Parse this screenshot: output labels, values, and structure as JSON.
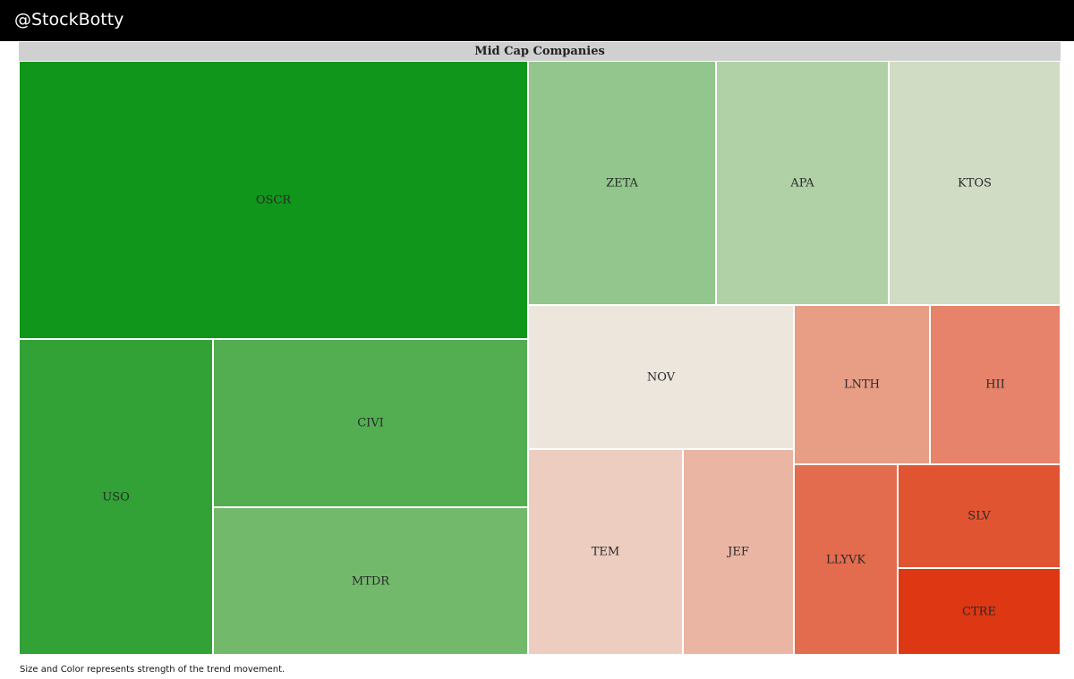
{
  "header": {
    "brand": "@StockBotty"
  },
  "footnote": "Size and Color represents strength of the trend movement.",
  "chart_data": {
    "type": "treemap",
    "title": "Mid Cap Companies",
    "items": [
      {
        "label": "OSCR",
        "color": "#10961a"
      },
      {
        "label": "ZETA",
        "color": "#92c68c"
      },
      {
        "label": "APA",
        "color": "#b0d1a6"
      },
      {
        "label": "KTOS",
        "color": "#d0dcc3"
      },
      {
        "label": "USO",
        "color": "#32a136"
      },
      {
        "label": "CIVI",
        "color": "#52ae51"
      },
      {
        "label": "MTDR",
        "color": "#73b96c"
      },
      {
        "label": "NOV",
        "color": "#ede6dd"
      },
      {
        "label": "LNTH",
        "color": "#e89d85"
      },
      {
        "label": "HII",
        "color": "#e6836a"
      },
      {
        "label": "TEM",
        "color": "#eccdbf"
      },
      {
        "label": "JEF",
        "color": "#eab5a2"
      },
      {
        "label": "LLYVK",
        "color": "#e36b4e"
      },
      {
        "label": "SLV",
        "color": "#e05432"
      },
      {
        "label": "CTRE",
        "color": "#de3713"
      }
    ]
  }
}
